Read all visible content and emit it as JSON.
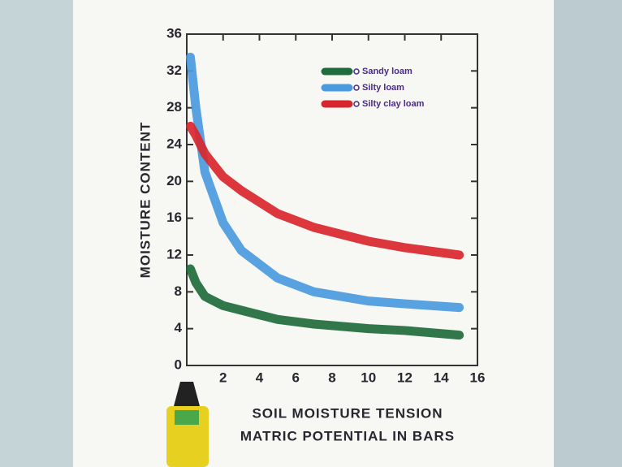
{
  "chart_data": {
    "type": "line",
    "y_label": "MOISTURE CONTENT",
    "x_label": [
      "SOIL MOISTURE TENSION",
      "MATRIC POTENTIAL IN BARS"
    ],
    "x": [
      0.2,
      0.5,
      1,
      2,
      3,
      5,
      7,
      10,
      12,
      15
    ],
    "series": [
      {
        "name": "Sandy loam",
        "color": "#1f6b3c",
        "values": [
          10.5,
          9,
          7.5,
          6.5,
          6,
          5,
          4.5,
          4,
          3.8,
          3.3
        ]
      },
      {
        "name": "Silty loam",
        "color": "#4a9ae0",
        "values": [
          33.5,
          28,
          21,
          15.5,
          12.5,
          9.5,
          8,
          7,
          6.7,
          6.3
        ]
      },
      {
        "name": "Silty clay loam",
        "color": "#d8262e",
        "values": [
          26,
          25,
          23,
          20.5,
          19,
          16.5,
          15,
          13.5,
          12.8,
          12
        ]
      }
    ],
    "xlim": [
      0,
      16
    ],
    "xticks": [
      2,
      4,
      6,
      8,
      10,
      12,
      14,
      16
    ],
    "ylim": [
      0,
      36
    ],
    "yticks": [
      0,
      4,
      8,
      12,
      16,
      20,
      24,
      28,
      32,
      36
    ]
  }
}
